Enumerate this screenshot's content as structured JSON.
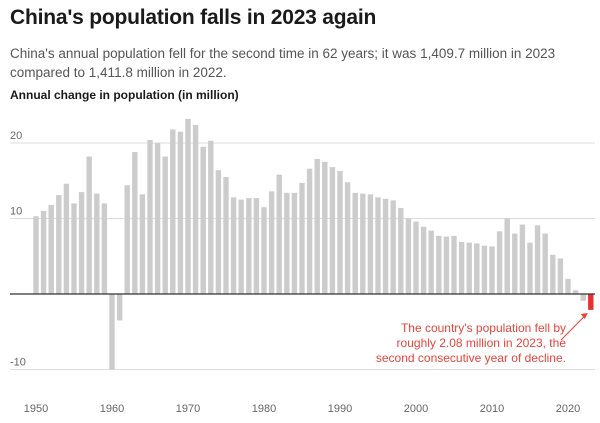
{
  "title": "China's population falls in 2023 again",
  "subtitle": "China's annual population fell for the second time in 62 years; it was 1,409.7 million in 2023 compared to 1,411.8 million in 2022.",
  "chart_data": {
    "type": "bar",
    "ylabel": "Annual change in population (in million)",
    "xlabel": "",
    "ylim": [
      -10,
      23
    ],
    "yticks": [
      20,
      10,
      -10
    ],
    "xticks": [
      1950,
      1960,
      1970,
      1980,
      1990,
      2000,
      2010,
      2020
    ],
    "colors": {
      "bar": "#cccccc",
      "highlight": "#e8302e",
      "gridline": "#dddddd",
      "baseline": "#333333",
      "annotation": "#e8443a"
    },
    "x": [
      1950,
      1951,
      1952,
      1953,
      1954,
      1955,
      1956,
      1957,
      1958,
      1959,
      1960,
      1961,
      1962,
      1963,
      1964,
      1965,
      1966,
      1967,
      1968,
      1969,
      1970,
      1971,
      1972,
      1973,
      1974,
      1975,
      1976,
      1977,
      1978,
      1979,
      1980,
      1981,
      1982,
      1983,
      1984,
      1985,
      1986,
      1987,
      1988,
      1989,
      1990,
      1991,
      1992,
      1993,
      1994,
      1995,
      1996,
      1997,
      1998,
      1999,
      2000,
      2001,
      2002,
      2003,
      2004,
      2005,
      2006,
      2007,
      2008,
      2009,
      2010,
      2011,
      2012,
      2013,
      2014,
      2015,
      2016,
      2017,
      2018,
      2019,
      2020,
      2021,
      2022,
      2023
    ],
    "values": [
      10.3,
      11.0,
      11.8,
      13.1,
      14.6,
      12.0,
      13.5,
      18.2,
      13.3,
      12.0,
      -10.0,
      -3.5,
      14.4,
      18.8,
      13.2,
      20.4,
      20.0,
      18.2,
      21.8,
      21.5,
      23.2,
      22.4,
      19.5,
      20.3,
      16.4,
      15.5,
      12.8,
      12.5,
      12.7,
      12.7,
      11.5,
      13.6,
      15.8,
      13.4,
      13.4,
      14.7,
      16.6,
      17.9,
      17.5,
      16.8,
      16.3,
      14.8,
      13.4,
      13.3,
      13.2,
      12.8,
      12.6,
      12.4,
      11.4,
      10.0,
      9.6,
      8.9,
      8.4,
      7.7,
      7.6,
      7.7,
      6.9,
      6.8,
      6.7,
      6.4,
      6.3,
      8.3,
      10.0,
      8.0,
      9.2,
      6.8,
      9.1,
      8.0,
      5.2,
      4.7,
      2.0,
      0.5,
      -0.9,
      -2.1
    ],
    "annotation": {
      "lines": [
        "The country's population fell by",
        "roughly 2.08 million in 2023, the",
        "second consecutive year of decline."
      ]
    }
  }
}
